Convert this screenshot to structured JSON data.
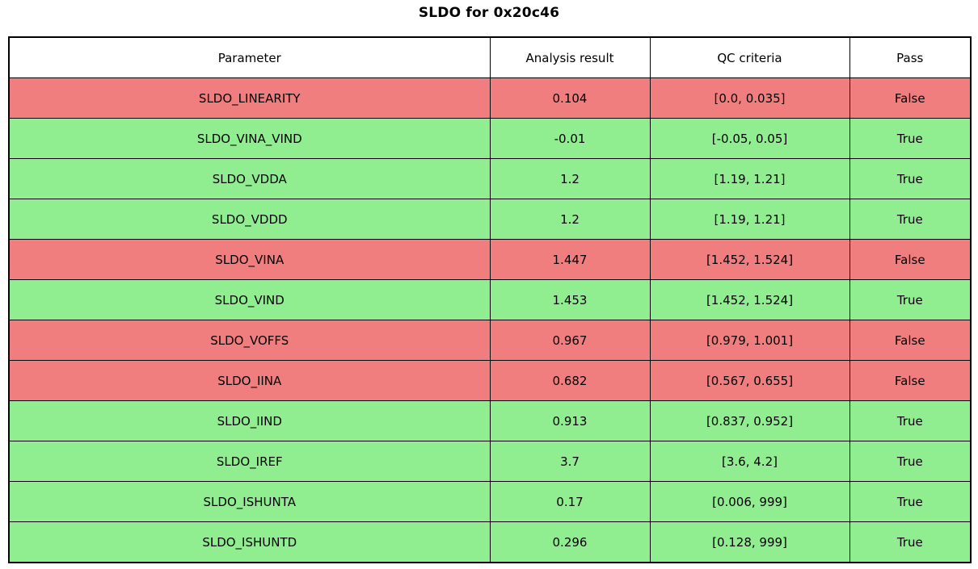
{
  "title": "SLDO for 0x20c46",
  "colors": {
    "pass_green": "#90ee90",
    "fail_red": "#f07e7e",
    "header_bg": "#ffffff",
    "border": "#000000"
  },
  "table": {
    "columns": [
      "Parameter",
      "Analysis result",
      "QC criteria",
      "Pass"
    ],
    "rows": [
      {
        "parameter": "SLDO_LINEARITY",
        "result": "0.104",
        "criteria": "[0.0, 0.035]",
        "pass": "False"
      },
      {
        "parameter": "SLDO_VINA_VIND",
        "result": "-0.01",
        "criteria": "[-0.05, 0.05]",
        "pass": "True"
      },
      {
        "parameter": "SLDO_VDDA",
        "result": "1.2",
        "criteria": "[1.19, 1.21]",
        "pass": "True"
      },
      {
        "parameter": "SLDO_VDDD",
        "result": "1.2",
        "criteria": "[1.19, 1.21]",
        "pass": "True"
      },
      {
        "parameter": "SLDO_VINA",
        "result": "1.447",
        "criteria": "[1.452, 1.524]",
        "pass": "False"
      },
      {
        "parameter": "SLDO_VIND",
        "result": "1.453",
        "criteria": "[1.452, 1.524]",
        "pass": "True"
      },
      {
        "parameter": "SLDO_VOFFS",
        "result": "0.967",
        "criteria": "[0.979, 1.001]",
        "pass": "False"
      },
      {
        "parameter": "SLDO_IINA",
        "result": "0.682",
        "criteria": "[0.567, 0.655]",
        "pass": "False"
      },
      {
        "parameter": "SLDO_IIND",
        "result": "0.913",
        "criteria": "[0.837, 0.952]",
        "pass": "True"
      },
      {
        "parameter": "SLDO_IREF",
        "result": "3.7",
        "criteria": "[3.6, 4.2]",
        "pass": "True"
      },
      {
        "parameter": "SLDO_ISHUNTA",
        "result": "0.17",
        "criteria": "[0.006, 999]",
        "pass": "True"
      },
      {
        "parameter": "SLDO_ISHUNTD",
        "result": "0.296",
        "criteria": "[0.128, 999]",
        "pass": "True"
      }
    ]
  },
  "chart_data": {
    "type": "table",
    "title": "SLDO for 0x20c46",
    "columns": [
      "Parameter",
      "Analysis result",
      "QC criteria",
      "Pass"
    ],
    "rows": [
      [
        "SLDO_LINEARITY",
        0.104,
        "[0.0, 0.035]",
        false
      ],
      [
        "SLDO_VINA_VIND",
        -0.01,
        "[-0.05, 0.05]",
        true
      ],
      [
        "SLDO_VDDA",
        1.2,
        "[1.19, 1.21]",
        true
      ],
      [
        "SLDO_VDDD",
        1.2,
        "[1.19, 1.21]",
        true
      ],
      [
        "SLDO_VINA",
        1.447,
        "[1.452, 1.524]",
        false
      ],
      [
        "SLDO_VIND",
        1.453,
        "[1.452, 1.524]",
        true
      ],
      [
        "SLDO_VOFFS",
        0.967,
        "[0.979, 1.001]",
        false
      ],
      [
        "SLDO_IINA",
        0.682,
        "[0.567, 0.655]",
        false
      ],
      [
        "SLDO_IIND",
        0.913,
        "[0.837, 0.952]",
        true
      ],
      [
        "SLDO_IREF",
        3.7,
        "[3.6, 4.2]",
        true
      ],
      [
        "SLDO_ISHUNTA",
        0.17,
        "[0.006, 999]",
        true
      ],
      [
        "SLDO_ISHUNTD",
        0.296,
        "[0.128, 999]",
        true
      ]
    ],
    "row_color_coding": {
      "pass": "#90ee90",
      "fail": "#f07e7e"
    },
    "layout": {
      "header_row": true,
      "grid": true,
      "outer_border_px": 2
    }
  }
}
